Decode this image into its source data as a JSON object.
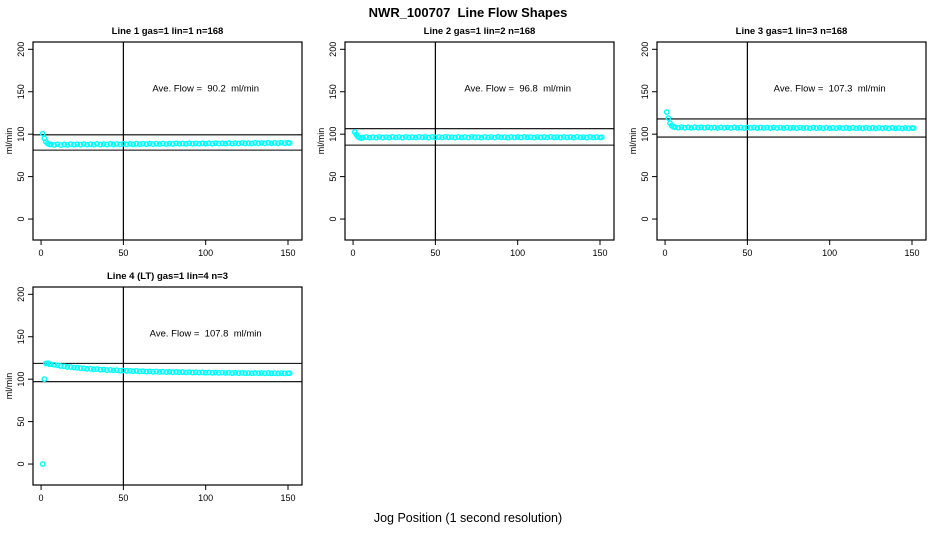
{
  "page": {
    "main_title": "NWR_100707  Line Flow Shapes",
    "x_axis_label": "Jog Position (1 second resolution)",
    "point_color": "#00FFFF",
    "line_color": "#000000",
    "background_color": "#FFFFFF"
  },
  "chart_data": [
    {
      "type": "scatter",
      "title": "Line 1 gas=1 lin=1 n=168",
      "annotation": "Ave. Flow =  90.2  ml/min",
      "ave_flow": 90.2,
      "ylabel": "ml/min",
      "xticks": [
        0,
        50,
        100,
        150
      ],
      "yticks": [
        0,
        50,
        100,
        150,
        200
      ],
      "xlim": [
        -4.9,
        158.5
      ],
      "ylim": [
        -24.7,
        208.6
      ],
      "vline_x": 50,
      "hlines": [
        99.2,
        81.2
      ],
      "annotation_pos": {
        "x": 100,
        "y": 150
      },
      "points": [
        [
          1,
          100.5
        ],
        [
          2,
          95
        ],
        [
          3,
          91
        ],
        [
          4,
          89
        ],
        [
          5,
          88
        ],
        [
          6,
          87.9
        ],
        [
          8,
          87.3
        ],
        [
          10,
          88.1
        ],
        [
          12,
          87.2
        ],
        [
          14,
          87.9
        ],
        [
          16,
          87.4
        ],
        [
          18,
          88.3
        ],
        [
          20,
          87.6
        ],
        [
          22,
          88.1
        ],
        [
          24,
          87.5
        ],
        [
          26,
          88.3
        ],
        [
          28,
          87.7
        ],
        [
          30,
          88.2
        ],
        [
          32,
          87.7
        ],
        [
          34,
          88.5
        ],
        [
          36,
          87.8
        ],
        [
          38,
          88.3
        ],
        [
          40,
          87.8
        ],
        [
          42,
          88.6
        ],
        [
          44,
          87.9
        ],
        [
          46,
          88.4
        ],
        [
          48,
          88.0
        ],
        [
          50,
          88.7
        ],
        [
          52,
          88.0
        ],
        [
          54,
          88.5
        ],
        [
          56,
          88.1
        ],
        [
          58,
          88.8
        ],
        [
          60,
          88.2
        ],
        [
          62,
          88.7
        ],
        [
          64,
          88.2
        ],
        [
          66,
          88.9
        ],
        [
          68,
          88.3
        ],
        [
          70,
          88.8
        ],
        [
          72,
          88.4
        ],
        [
          74,
          89.0
        ],
        [
          76,
          88.4
        ],
        [
          78,
          88.9
        ],
        [
          80,
          88.5
        ],
        [
          82,
          89.1
        ],
        [
          84,
          88.6
        ],
        [
          86,
          89.0
        ],
        [
          88,
          88.6
        ],
        [
          90,
          89.2
        ],
        [
          92,
          88.7
        ],
        [
          94,
          89.1
        ],
        [
          96,
          88.7
        ],
        [
          98,
          89.3
        ],
        [
          100,
          88.8
        ],
        [
          102,
          89.2
        ],
        [
          104,
          88.8
        ],
        [
          106,
          89.4
        ],
        [
          108,
          88.9
        ],
        [
          110,
          89.3
        ],
        [
          112,
          88.9
        ],
        [
          114,
          89.5
        ],
        [
          116,
          89.0
        ],
        [
          118,
          89.4
        ],
        [
          120,
          89.0
        ],
        [
          122,
          89.6
        ],
        [
          124,
          89.1
        ],
        [
          126,
          89.5
        ],
        [
          128,
          89.1
        ],
        [
          130,
          89.7
        ],
        [
          132,
          89.2
        ],
        [
          134,
          89.6
        ],
        [
          136,
          89.2
        ],
        [
          138,
          89.8
        ],
        [
          140,
          89.3
        ],
        [
          142,
          89.7
        ],
        [
          144,
          89.3
        ],
        [
          146,
          89.9
        ],
        [
          148,
          89.4
        ],
        [
          150,
          89.8
        ],
        [
          151,
          89.5
        ]
      ]
    },
    {
      "type": "scatter",
      "title": "Line 2 gas=1 lin=2 n=168",
      "annotation": "Ave. Flow =  96.8  ml/min",
      "ave_flow": 96.8,
      "ylabel": "ml/min",
      "xticks": [
        0,
        50,
        100,
        150
      ],
      "yticks": [
        0,
        50,
        100,
        150,
        200
      ],
      "xlim": [
        -4.9,
        158.5
      ],
      "ylim": [
        -24.7,
        208.6
      ],
      "vline_x": 50,
      "hlines": [
        106.5,
        87.1
      ],
      "annotation_pos": {
        "x": 100,
        "y": 150
      },
      "points": [
        [
          1,
          102.5
        ],
        [
          2,
          99.5
        ],
        [
          3,
          97
        ],
        [
          4,
          95.8
        ],
        [
          5,
          95.3
        ],
        [
          6,
          96.0
        ],
        [
          8,
          96.6
        ],
        [
          10,
          95.9
        ],
        [
          12,
          96.5
        ],
        [
          14,
          96.0
        ],
        [
          16,
          96.7
        ],
        [
          18,
          96.1
        ],
        [
          20,
          96.5
        ],
        [
          22,
          96.0
        ],
        [
          24,
          96.8
        ],
        [
          26,
          96.2
        ],
        [
          28,
          96.6
        ],
        [
          30,
          96.0
        ],
        [
          32,
          96.7
        ],
        [
          34,
          96.2
        ],
        [
          36,
          96.5
        ],
        [
          38,
          96.1
        ],
        [
          40,
          96.8
        ],
        [
          42,
          96.3
        ],
        [
          44,
          96.6
        ],
        [
          46,
          96.0
        ],
        [
          48,
          96.7
        ],
        [
          50,
          96.2
        ],
        [
          52,
          96.6
        ],
        [
          54,
          96.1
        ],
        [
          56,
          96.8
        ],
        [
          58,
          96.3
        ],
        [
          60,
          96.5
        ],
        [
          62,
          96.0
        ],
        [
          64,
          96.7
        ],
        [
          66,
          96.2
        ],
        [
          68,
          96.6
        ],
        [
          70,
          96.1
        ],
        [
          72,
          96.8
        ],
        [
          74,
          96.3
        ],
        [
          76,
          96.5
        ],
        [
          78,
          96.0
        ],
        [
          80,
          96.7
        ],
        [
          82,
          96.2
        ],
        [
          84,
          96.6
        ],
        [
          86,
          96.1
        ],
        [
          88,
          96.8
        ],
        [
          90,
          96.3
        ],
        [
          92,
          96.5
        ],
        [
          94,
          96.0
        ],
        [
          96,
          96.7
        ],
        [
          98,
          96.2
        ],
        [
          100,
          96.6
        ],
        [
          102,
          96.1
        ],
        [
          104,
          96.8
        ],
        [
          106,
          96.3
        ],
        [
          108,
          96.5
        ],
        [
          110,
          96.0
        ],
        [
          112,
          96.7
        ],
        [
          114,
          96.2
        ],
        [
          116,
          96.6
        ],
        [
          118,
          96.1
        ],
        [
          120,
          96.8
        ],
        [
          122,
          96.3
        ],
        [
          124,
          96.5
        ],
        [
          126,
          96.0
        ],
        [
          128,
          96.7
        ],
        [
          130,
          96.2
        ],
        [
          132,
          96.6
        ],
        [
          134,
          96.1
        ],
        [
          136,
          96.8
        ],
        [
          138,
          96.3
        ],
        [
          140,
          96.5
        ],
        [
          142,
          96.0
        ],
        [
          144,
          96.7
        ],
        [
          146,
          96.2
        ],
        [
          148,
          96.6
        ],
        [
          150,
          96.1
        ],
        [
          151,
          96.4
        ]
      ]
    },
    {
      "type": "scatter",
      "title": "Line 3 gas=1 lin=3 n=168",
      "annotation": "Ave. Flow =  107.3  ml/min",
      "ave_flow": 107.3,
      "ylabel": "ml/min",
      "xticks": [
        0,
        50,
        100,
        150
      ],
      "yticks": [
        0,
        50,
        100,
        150,
        200
      ],
      "xlim": [
        -4.9,
        158.5
      ],
      "ylim": [
        -24.7,
        208.6
      ],
      "vline_x": 50,
      "hlines": [
        118.0,
        96.6
      ],
      "annotation_pos": {
        "x": 100,
        "y": 150
      },
      "points": [
        [
          1,
          126
        ],
        [
          2,
          119
        ],
        [
          3,
          113
        ],
        [
          4,
          110
        ],
        [
          5,
          108.8
        ],
        [
          6,
          108.2
        ],
        [
          8,
          107.6
        ],
        [
          10,
          108.3
        ],
        [
          12,
          107.5
        ],
        [
          14,
          108.1
        ],
        [
          16,
          107.4
        ],
        [
          18,
          108.2
        ],
        [
          20,
          107.6
        ],
        [
          22,
          108.0
        ],
        [
          24,
          107.4
        ],
        [
          26,
          108.1
        ],
        [
          28,
          107.5
        ],
        [
          30,
          107.9
        ],
        [
          32,
          107.3
        ],
        [
          34,
          108.0
        ],
        [
          36,
          107.5
        ],
        [
          38,
          107.9
        ],
        [
          40,
          107.3
        ],
        [
          42,
          108.0
        ],
        [
          44,
          107.4
        ],
        [
          46,
          107.8
        ],
        [
          48,
          107.2
        ],
        [
          50,
          107.9
        ],
        [
          52,
          107.4
        ],
        [
          54,
          107.8
        ],
        [
          56,
          107.2
        ],
        [
          58,
          107.9
        ],
        [
          60,
          107.3
        ],
        [
          62,
          107.7
        ],
        [
          64,
          107.2
        ],
        [
          66,
          107.8
        ],
        [
          68,
          107.3
        ],
        [
          70,
          107.7
        ],
        [
          72,
          107.1
        ],
        [
          74,
          107.8
        ],
        [
          76,
          107.2
        ],
        [
          78,
          107.6
        ],
        [
          80,
          107.1
        ],
        [
          82,
          107.7
        ],
        [
          84,
          107.2
        ],
        [
          86,
          107.6
        ],
        [
          88,
          107.0
        ],
        [
          90,
          107.7
        ],
        [
          92,
          107.1
        ],
        [
          94,
          107.5
        ],
        [
          96,
          107.0
        ],
        [
          98,
          107.6
        ],
        [
          100,
          107.1
        ],
        [
          102,
          107.5
        ],
        [
          104,
          107.0
        ],
        [
          106,
          107.6
        ],
        [
          108,
          107.1
        ],
        [
          110,
          107.5
        ],
        [
          112,
          106.9
        ],
        [
          114,
          107.6
        ],
        [
          116,
          107.0
        ],
        [
          118,
          107.4
        ],
        [
          120,
          106.9
        ],
        [
          122,
          107.5
        ],
        [
          124,
          107.0
        ],
        [
          126,
          107.4
        ],
        [
          128,
          106.9
        ],
        [
          130,
          107.5
        ],
        [
          132,
          107.0
        ],
        [
          134,
          107.4
        ],
        [
          136,
          106.8
        ],
        [
          138,
          107.5
        ],
        [
          140,
          106.9
        ],
        [
          142,
          107.3
        ],
        [
          144,
          106.8
        ],
        [
          146,
          107.4
        ],
        [
          148,
          106.9
        ],
        [
          150,
          107.3
        ],
        [
          151,
          107.1
        ]
      ]
    },
    {
      "type": "scatter",
      "title": "Line 4 (LT) gas=1 lin=4 n=3",
      "annotation": "Ave. Flow =  107.8  ml/min",
      "ave_flow": 107.8,
      "ylabel": "ml/min",
      "xticks": [
        0,
        50,
        100,
        150
      ],
      "yticks": [
        0,
        50,
        100,
        150,
        200
      ],
      "xlim": [
        -4.9,
        158.5
      ],
      "ylim": [
        -24.7,
        208.6
      ],
      "vline_x": 50,
      "hlines": [
        118.6,
        97.0
      ],
      "annotation_pos": {
        "x": 100,
        "y": 150
      },
      "points": [
        [
          1,
          0
        ],
        [
          2,
          100
        ],
        [
          3,
          118.5
        ],
        [
          4,
          118.8
        ],
        [
          5,
          117.8
        ],
        [
          6,
          117.6
        ],
        [
          8,
          117.0
        ],
        [
          10,
          116.4
        ],
        [
          12,
          115.5
        ],
        [
          14,
          115.2
        ],
        [
          16,
          114.4
        ],
        [
          18,
          114.3
        ],
        [
          20,
          113.6
        ],
        [
          22,
          113.5
        ],
        [
          24,
          112.8
        ],
        [
          26,
          112.8
        ],
        [
          28,
          112.2
        ],
        [
          30,
          112.3
        ],
        [
          32,
          111.6
        ],
        [
          34,
          111.8
        ],
        [
          36,
          111.2
        ],
        [
          38,
          111.3
        ],
        [
          40,
          110.7
        ],
        [
          42,
          110.9
        ],
        [
          44,
          110.4
        ],
        [
          46,
          110.6
        ],
        [
          48,
          110.0
        ],
        [
          50,
          110.2
        ],
        [
          52,
          109.7
        ],
        [
          54,
          109.9
        ],
        [
          56,
          109.4
        ],
        [
          58,
          109.7
        ],
        [
          60,
          109.1
        ],
        [
          62,
          109.4
        ],
        [
          64,
          108.9
        ],
        [
          66,
          109.2
        ],
        [
          68,
          108.7
        ],
        [
          70,
          109.0
        ],
        [
          72,
          108.5
        ],
        [
          74,
          108.8
        ],
        [
          76,
          108.4
        ],
        [
          78,
          108.7
        ],
        [
          80,
          108.2
        ],
        [
          82,
          108.5
        ],
        [
          84,
          108.1
        ],
        [
          86,
          108.4
        ],
        [
          88,
          108.0
        ],
        [
          90,
          108.3
        ],
        [
          92,
          107.8
        ],
        [
          94,
          108.1
        ],
        [
          96,
          107.7
        ],
        [
          98,
          108.0
        ],
        [
          100,
          107.6
        ],
        [
          102,
          107.9
        ],
        [
          104,
          107.5
        ],
        [
          106,
          107.8
        ],
        [
          108,
          107.4
        ],
        [
          110,
          107.7
        ],
        [
          112,
          107.3
        ],
        [
          114,
          107.6
        ],
        [
          116,
          107.2
        ],
        [
          118,
          107.5
        ],
        [
          120,
          107.1
        ],
        [
          122,
          107.4
        ],
        [
          124,
          107.1
        ],
        [
          126,
          107.3
        ],
        [
          128,
          107.0
        ],
        [
          130,
          107.3
        ],
        [
          132,
          107.0
        ],
        [
          134,
          107.2
        ],
        [
          136,
          106.9
        ],
        [
          138,
          107.2
        ],
        [
          140,
          106.9
        ],
        [
          142,
          107.1
        ],
        [
          144,
          106.8
        ],
        [
          146,
          107.1
        ],
        [
          148,
          106.8
        ],
        [
          150,
          107.0
        ],
        [
          151,
          107.0
        ]
      ]
    }
  ]
}
